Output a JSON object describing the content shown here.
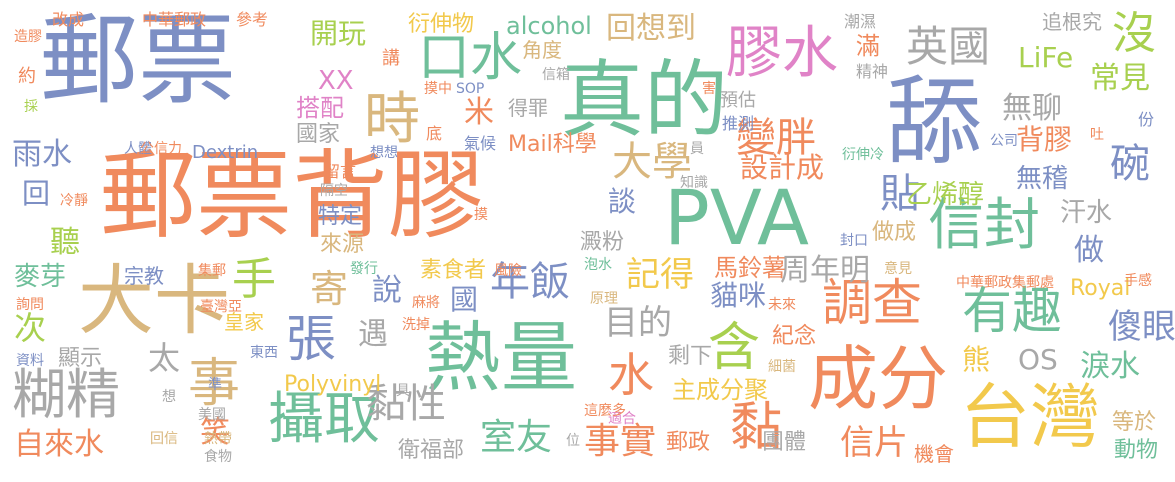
{
  "palette": {
    "blue": "#7d8fc4",
    "orange": "#f08a5d",
    "green": "#6fbf9a",
    "yellow": "#f2c94c",
    "lime": "#a8d04f",
    "tan": "#d9b77e",
    "pink": "#e083c7",
    "gray": "#a8a8a8"
  },
  "words": [
    {
      "text": "郵票背膠",
      "color": "orange"
    },
    {
      "text": "郵票",
      "color": "blue"
    },
    {
      "text": "真的",
      "color": "green"
    },
    {
      "text": "舔",
      "color": "blue"
    },
    {
      "text": "PVA",
      "color": "green"
    },
    {
      "text": "熱量",
      "color": "green"
    },
    {
      "text": "大卡",
      "color": "tan"
    },
    {
      "text": "台灣",
      "color": "yellow"
    },
    {
      "text": "成分",
      "color": "orange"
    },
    {
      "text": "攝取",
      "color": "green"
    },
    {
      "text": "膠水",
      "color": "pink"
    },
    {
      "text": "信封",
      "color": "green"
    },
    {
      "text": "口水",
      "color": "green"
    },
    {
      "text": "糊精",
      "color": "gray"
    },
    {
      "text": "調查",
      "color": "orange"
    },
    {
      "text": "有趣",
      "color": "green"
    },
    {
      "text": "張",
      "color": "blue"
    },
    {
      "text": "事",
      "color": "tan"
    },
    {
      "text": "變胖",
      "color": "orange"
    },
    {
      "text": "英國",
      "color": "gray"
    },
    {
      "text": "時",
      "color": "tan"
    },
    {
      "text": "黏性",
      "color": "gray"
    },
    {
      "text": "大學",
      "color": "tan"
    },
    {
      "text": "事實",
      "color": "orange"
    },
    {
      "text": "年飯",
      "color": "blue"
    },
    {
      "text": "沒",
      "color": "lime"
    },
    {
      "text": "手",
      "color": "lime"
    },
    {
      "text": "水",
      "color": "orange"
    },
    {
      "text": "含",
      "color": "lime"
    },
    {
      "text": "黏",
      "color": "orange"
    },
    {
      "text": "周年明",
      "color": "gray"
    },
    {
      "text": "目的",
      "color": "gray"
    },
    {
      "text": "碗",
      "color": "blue"
    },
    {
      "text": "貼",
      "color": "blue"
    },
    {
      "text": "寄",
      "color": "tan"
    },
    {
      "text": "記得",
      "color": "yellow"
    },
    {
      "text": "信片",
      "color": "orange"
    },
    {
      "text": "室友",
      "color": "green"
    },
    {
      "text": "回想到",
      "color": "tan"
    },
    {
      "text": "開玩",
      "color": "lime"
    },
    {
      "text": "自來水",
      "color": "orange"
    },
    {
      "text": "傻眼",
      "color": "blue"
    },
    {
      "text": "LiFe",
      "color": "lime"
    },
    {
      "text": "常見",
      "color": "lime"
    },
    {
      "text": "無聊",
      "color": "gray"
    },
    {
      "text": "背膠",
      "color": "orange"
    },
    {
      "text": "無稽",
      "color": "blue"
    },
    {
      "text": "OS",
      "color": "gray"
    },
    {
      "text": "淚水",
      "color": "green"
    },
    {
      "text": "設計成",
      "color": "orange"
    },
    {
      "text": "乙烯醇",
      "color": "lime"
    },
    {
      "text": "貓咪",
      "color": "blue"
    },
    {
      "text": "汗水",
      "color": "gray"
    },
    {
      "text": "做",
      "color": "blue"
    },
    {
      "text": "XX",
      "color": "pink"
    },
    {
      "text": "雨水",
      "color": "blue"
    },
    {
      "text": "回",
      "color": "blue"
    },
    {
      "text": "聽",
      "color": "lime"
    },
    {
      "text": "麥芽",
      "color": "green"
    },
    {
      "text": "次",
      "color": "lime"
    },
    {
      "text": "太",
      "color": "gray"
    },
    {
      "text": "笑",
      "color": "orange"
    },
    {
      "text": "遇",
      "color": "gray"
    },
    {
      "text": "說",
      "color": "blue"
    },
    {
      "text": "國",
      "color": "blue"
    },
    {
      "text": "米",
      "color": "orange"
    },
    {
      "text": "熊",
      "color": "yellow"
    },
    {
      "text": "談",
      "color": "blue"
    },
    {
      "text": "alcohol",
      "color": "green"
    },
    {
      "text": "Polyvinyl",
      "color": "yellow"
    },
    {
      "text": "Royal",
      "color": "yellow"
    },
    {
      "text": "Dextrin",
      "color": "blue"
    },
    {
      "text": "Mail科學",
      "color": "orange"
    },
    {
      "text": "衍伸物",
      "color": "yellow"
    },
    {
      "text": "角度",
      "color": "tan"
    },
    {
      "text": "搭配",
      "color": "pink"
    },
    {
      "text": "國家",
      "color": "gray"
    },
    {
      "text": "特定",
      "color": "blue"
    },
    {
      "text": "來源",
      "color": "tan"
    },
    {
      "text": "素食者",
      "color": "yellow"
    },
    {
      "text": "澱粉",
      "color": "gray"
    },
    {
      "text": "馬鈴薯",
      "color": "orange"
    },
    {
      "text": "紀念",
      "color": "orange"
    },
    {
      "text": "剩下",
      "color": "gray"
    },
    {
      "text": "主成分聚",
      "color": "yellow"
    },
    {
      "text": "團體",
      "color": "gray"
    },
    {
      "text": "郵政",
      "color": "orange"
    },
    {
      "text": "衛福部",
      "color": "gray"
    },
    {
      "text": "顯示",
      "color": "gray"
    },
    {
      "text": "皇家",
      "color": "yellow"
    },
    {
      "text": "宗教",
      "color": "blue"
    },
    {
      "text": "機會",
      "color": "orange"
    },
    {
      "text": "等於",
      "color": "tan"
    },
    {
      "text": "動物",
      "color": "green"
    },
    {
      "text": "做成",
      "color": "tan"
    },
    {
      "text": "得罪",
      "color": "gray"
    },
    {
      "text": "預估",
      "color": "gray"
    },
    {
      "text": "推測",
      "color": "blue"
    },
    {
      "text": "追根究",
      "color": "gray"
    },
    {
      "text": "滿",
      "color": "orange"
    },
    {
      "text": "精神",
      "color": "gray"
    },
    {
      "text": "潮濕",
      "color": "gray"
    },
    {
      "text": "講",
      "color": "orange"
    },
    {
      "text": "信箱",
      "color": "gray"
    },
    {
      "text": "氣候",
      "color": "blue"
    },
    {
      "text": "底",
      "color": "orange"
    },
    {
      "text": "想想",
      "color": "blue"
    },
    {
      "text": "留言",
      "color": "orange"
    },
    {
      "text": "隔空",
      "color": "gray"
    },
    {
      "text": "知識",
      "color": "gray"
    },
    {
      "text": "中華郵政",
      "color": "orange"
    },
    {
      "text": "參考",
      "color": "orange"
    },
    {
      "text": "改成",
      "color": "orange"
    },
    {
      "text": "造膠",
      "color": "orange"
    },
    {
      "text": "約",
      "color": "orange"
    },
    {
      "text": "採",
      "color": "lime"
    },
    {
      "text": "人體",
      "color": "blue"
    },
    {
      "text": "公信力",
      "color": "orange"
    },
    {
      "text": "冷靜",
      "color": "orange"
    },
    {
      "text": "集郵",
      "color": "orange"
    },
    {
      "text": "發行",
      "color": "green"
    },
    {
      "text": "風險",
      "color": "orange"
    },
    {
      "text": "泡水",
      "color": "green"
    },
    {
      "text": "原理",
      "color": "tan"
    },
    {
      "text": "未來",
      "color": "orange"
    },
    {
      "text": "細菌",
      "color": "tan"
    },
    {
      "text": "適合",
      "color": "pink"
    },
    {
      "text": "這麼多",
      "color": "orange"
    },
    {
      "text": "具",
      "color": "gray"
    },
    {
      "text": "準",
      "color": "blue"
    },
    {
      "text": "東西",
      "color": "blue"
    },
    {
      "text": "洗掉",
      "color": "orange"
    },
    {
      "text": "麻將",
      "color": "orange"
    },
    {
      "text": "臺灣亞",
      "color": "orange"
    },
    {
      "text": "美國",
      "color": "gray"
    },
    {
      "text": "熱帶",
      "color": "tan"
    },
    {
      "text": "食物",
      "color": "gray"
    },
    {
      "text": "回信",
      "color": "tan"
    },
    {
      "text": "位",
      "color": "gray"
    },
    {
      "text": "想",
      "color": "gray"
    },
    {
      "text": "資料",
      "color": "blue"
    },
    {
      "text": "詢問",
      "color": "orange"
    },
    {
      "text": "意見",
      "color": "tan"
    },
    {
      "text": "封口",
      "color": "blue"
    },
    {
      "text": "中華郵政集郵處",
      "color": "orange"
    },
    {
      "text": "手感",
      "color": "orange"
    },
    {
      "text": "公司",
      "color": "blue"
    },
    {
      "text": "衍伸冷",
      "color": "green"
    },
    {
      "text": "吐",
      "color": "orange"
    },
    {
      "text": "份",
      "color": "blue"
    },
    {
      "text": "摸中",
      "color": "orange"
    },
    {
      "text": "SOP",
      "color": "blue"
    },
    {
      "text": "害",
      "color": "orange"
    },
    {
      "text": "摸",
      "color": "orange"
    },
    {
      "text": "員",
      "color": "gray"
    }
  ]
}
